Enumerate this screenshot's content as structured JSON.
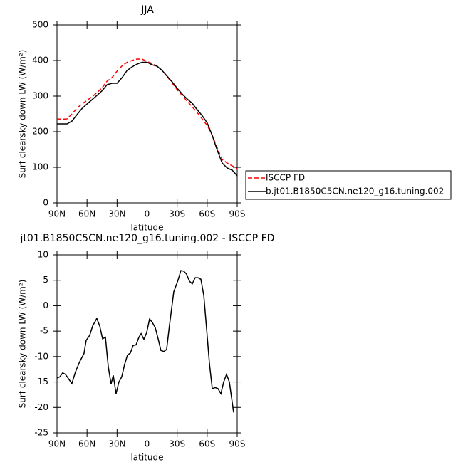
{
  "chart_data": [
    {
      "type": "line",
      "title": "JJA",
      "xlabel": "latitude",
      "ylabel": "Surf clearsky down LW (W/m²)",
      "x": [
        90,
        85,
        80,
        75,
        70,
        65,
        60,
        55,
        50,
        45,
        40,
        35,
        30,
        25,
        20,
        15,
        10,
        5,
        0,
        -5,
        -10,
        -15,
        -20,
        -25,
        -30,
        -35,
        -40,
        -45,
        -50,
        -55,
        -60,
        -65,
        -70,
        -75,
        -80,
        -85,
        -90
      ],
      "series": [
        {
          "name": "ISCCP FD",
          "color": "#ff0000",
          "dash": true,
          "values": [
            236,
            235,
            236,
            250,
            266,
            278,
            288,
            298,
            310,
            323,
            342,
            352,
            370,
            385,
            395,
            400,
            404,
            404,
            397,
            392,
            384,
            372,
            355,
            337,
            318,
            302,
            286,
            270,
            254,
            236,
            218,
            190,
            155,
            122,
            112,
            104,
            96
          ]
        },
        {
          "name": "b.jt01.B1850C5CN.ne120_g16.tuning.002",
          "color": "#000000",
          "dash": false,
          "values": [
            222,
            222,
            222,
            230,
            248,
            265,
            278,
            290,
            302,
            315,
            332,
            336,
            336,
            352,
            372,
            382,
            390,
            395,
            395,
            388,
            384,
            372,
            356,
            340,
            322,
            306,
            292,
            280,
            262,
            245,
            225,
            190,
            148,
            112,
            98,
            92,
            76
          ]
        }
      ],
      "xlim": [
        90,
        -90
      ],
      "xticks": [
        {
          "value": 90,
          "label": "90N"
        },
        {
          "value": 60,
          "label": "60N"
        },
        {
          "value": 30,
          "label": "30N"
        },
        0,
        {
          "value": -30,
          "label": "30S"
        },
        {
          "value": -60,
          "label": "60S"
        },
        {
          "value": -90,
          "label": "90S"
        }
      ],
      "ylim": [
        0,
        500
      ],
      "yticks": [
        0,
        100,
        200,
        300,
        400,
        500
      ],
      "legend": "outside-right"
    },
    {
      "type": "line",
      "title": "jt01.B1850C5CN.ne120_g16.tuning.002 - ISCCP FD",
      "xlabel": "latitude",
      "ylabel": "Surf clearsky down LW (W/m²)",
      "x": [
        90,
        87.2,
        84.3,
        81.5,
        75.1,
        71.5,
        67.3,
        63.0,
        60.8,
        57.3,
        54.4,
        50.2,
        47.3,
        44.5,
        41.6,
        38.8,
        36.0,
        33.8,
        31.0,
        28.2,
        25.3,
        22.4,
        19.6,
        16.7,
        13.9,
        11.0,
        8.2,
        6.0,
        3.2,
        0.4,
        -2.5,
        -5.3,
        -8.1,
        -11.0,
        -13.8,
        -16.7,
        -19.5,
        -22.3,
        -26.6,
        -30.9,
        -33.7,
        -36.6,
        -39.4,
        -42.3,
        -45.1,
        -48.0,
        -50.8,
        -53.7,
        -56.6,
        -59.4,
        -62.3,
        -65.1,
        -68.0,
        -70.8,
        -73.7,
        -76.5,
        -79.3,
        -82.2,
        -85.0,
        -86.4
      ],
      "series": [
        {
          "color": "#000000",
          "dash": false,
          "values": [
            -14.2,
            -14,
            -13.2,
            -13.5,
            -15.3,
            -13,
            -11,
            -9.4,
            -6.8,
            -5.8,
            -4,
            -2.5,
            -4,
            -6.5,
            -6.2,
            -12,
            -15.4,
            -13.7,
            -17.3,
            -15,
            -14,
            -11.5,
            -9.7,
            -9.3,
            -7.8,
            -7.7,
            -6.2,
            -5.5,
            -6.6,
            -5.3,
            -2.6,
            -3.3,
            -4.3,
            -6.5,
            -8.8,
            -9,
            -8.6,
            -4,
            2.7,
            5,
            6.9,
            6.8,
            6.2,
            4.8,
            4.3,
            5.5,
            5.5,
            5.2,
            2,
            -4.5,
            -11.5,
            -16.3,
            -16.1,
            -16.3,
            -17.3,
            -15,
            -13.5,
            -15,
            -19,
            -21
          ]
        }
      ],
      "xlim": [
        90,
        -90
      ],
      "xticks": [
        {
          "value": 90,
          "label": "90N"
        },
        {
          "value": 60,
          "label": "60N"
        },
        {
          "value": 30,
          "label": "30N"
        },
        0,
        {
          "value": -30,
          "label": "30S"
        },
        {
          "value": -60,
          "label": "60S"
        },
        {
          "value": -90,
          "label": "90S"
        }
      ],
      "ylim": [
        -25,
        10
      ],
      "yticks": [
        -25,
        -20,
        -15,
        -10,
        -5,
        0,
        5,
        10
      ]
    }
  ]
}
